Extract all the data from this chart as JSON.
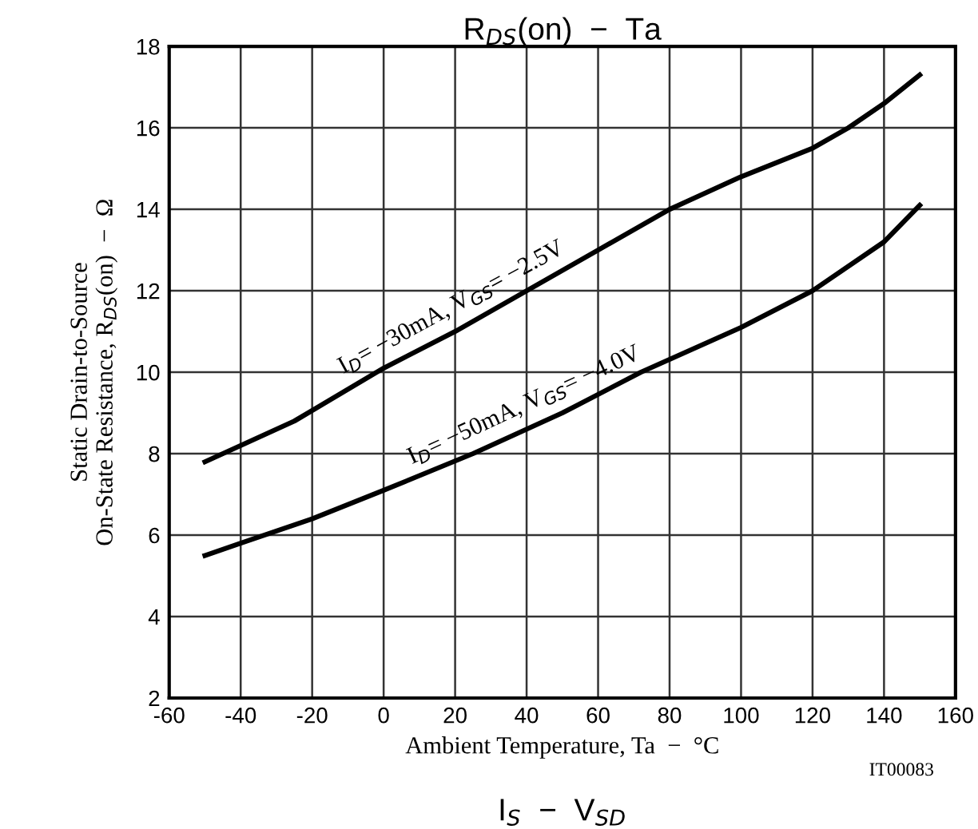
{
  "chart_data": {
    "type": "line",
    "title": "R$_{DS}$(on)  −  Ta",
    "xlabel": "Ambient Temperature, Ta  −  °C",
    "ylabel": "Static Drain-to-Source\nOn-State Resistance, R$_{DS}$(on)  −  Ω",
    "series": [
      {
        "color": "#000000",
        "x": [
          -50,
          -25,
          0,
          20,
          40,
          60,
          80,
          100,
          120,
          130,
          140,
          150
        ],
        "values": [
          7.8,
          8.8,
          10.1,
          11.0,
          12.0,
          13.0,
          14.0,
          14.8,
          15.5,
          16.0,
          16.6,
          17.3
        ]
      },
      {
        "color": "#000000",
        "x": [
          -50,
          -40,
          -20,
          0,
          25,
          50,
          72,
          100,
          120,
          140,
          150
        ],
        "values": [
          5.5,
          5.8,
          6.4,
          7.1,
          8.0,
          9.0,
          10.0,
          11.1,
          12.0,
          13.2,
          14.1
        ]
      }
    ],
    "annotations": [
      "I$_{D}$= −30mA, V$_{GS}$= −2.5V",
      "I$_{D}$= −50mA, V$_{GS}$= −4.0V",
      "IT00083",
      "I$_{S}$  −  V$_{SD}$"
    ],
    "xlim": [
      -60,
      160
    ],
    "xticks": [
      -60,
      -40,
      -20,
      0,
      20,
      40,
      60,
      80,
      100,
      120,
      140,
      160
    ],
    "ylim": [
      2,
      18
    ],
    "yticks": [
      2,
      4,
      6,
      8,
      10,
      12,
      14,
      16,
      18
    ],
    "grid": true,
    "marker": "none",
    "line_style": "solid"
  }
}
